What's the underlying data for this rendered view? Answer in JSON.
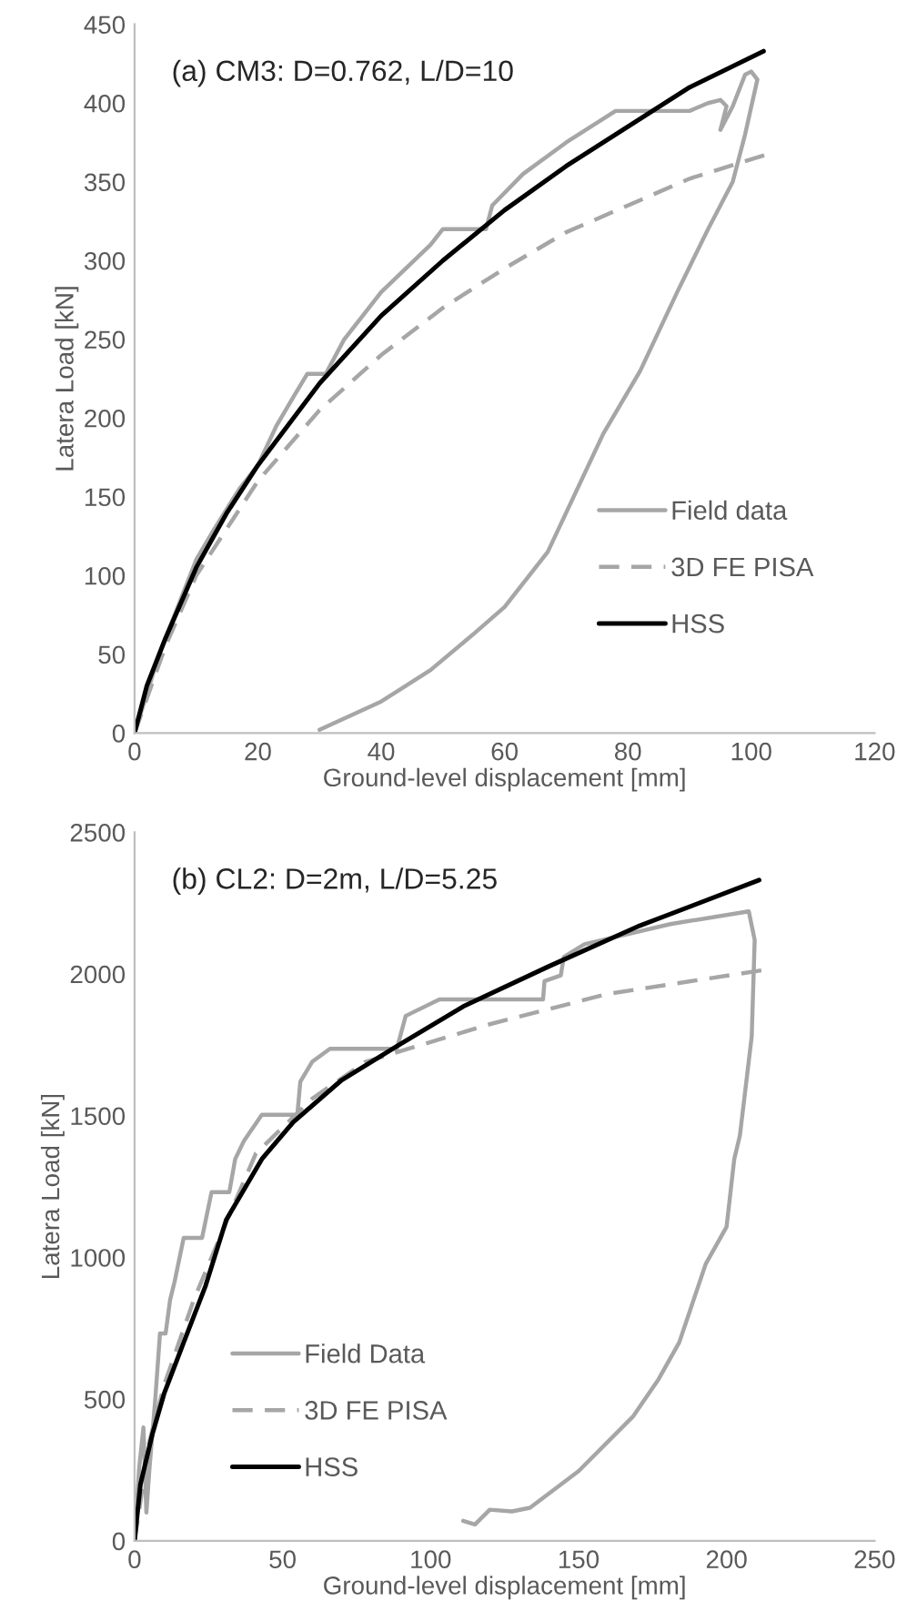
{
  "chart_data": [
    {
      "type": "line",
      "title": "(a) CM3: D=0.762, L/D=10",
      "xlabel": "Ground-level displacement [mm]",
      "ylabel": "Latera Load [kN]",
      "xlim": [
        0,
        120
      ],
      "xticks": [
        0,
        20,
        40,
        60,
        80,
        100,
        120
      ],
      "ylim": [
        0,
        450
      ],
      "yticks": [
        0,
        50,
        100,
        150,
        200,
        250,
        300,
        350,
        400,
        450
      ],
      "grid": false,
      "legend": "bottom right",
      "marker": "none",
      "series": [
        {
          "name": "Field data",
          "color": "#a6a6a6",
          "line_style": "solid",
          "x": [
            0,
            2,
            4,
            7,
            10,
            13,
            17,
            20,
            23,
            26,
            28,
            31,
            34,
            40,
            48,
            50,
            57,
            58,
            63,
            70,
            78,
            90,
            93,
            95,
            96,
            95,
            97,
            99,
            100,
            101,
            99,
            97,
            93,
            88,
            82,
            76,
            67,
            60,
            55,
            48,
            40,
            30
          ],
          "values": [
            0,
            25,
            50,
            80,
            110,
            130,
            155,
            170,
            195,
            215,
            228,
            228,
            250,
            280,
            310,
            320,
            320,
            335,
            355,
            375,
            395,
            395,
            400,
            402,
            398,
            383,
            398,
            418,
            420,
            415,
            380,
            350,
            320,
            280,
            230,
            190,
            115,
            80,
            63,
            40,
            20,
            2
          ]
        },
        {
          "name": "3D FE PISA",
          "color": "#a6a6a6",
          "line_style": "dashed",
          "x": [
            0,
            5,
            10,
            20,
            30,
            40,
            50,
            60,
            70,
            80,
            90,
            103
          ],
          "values": [
            0,
            55,
            100,
            160,
            205,
            240,
            270,
            295,
            318,
            335,
            352,
            368
          ]
        },
        {
          "name": "HSS",
          "color": "#000000",
          "line_style": "solid",
          "x": [
            0,
            2,
            5,
            10,
            15,
            20,
            30,
            40,
            50,
            60,
            70,
            80,
            90,
            102
          ],
          "values": [
            0,
            30,
            60,
            105,
            140,
            170,
            222,
            265,
            300,
            332,
            360,
            385,
            410,
            433
          ]
        }
      ]
    },
    {
      "type": "line",
      "title": "(b) CL2: D=2m, L/D=5.25",
      "xlabel": "Ground-level displacement [mm]",
      "ylabel": "Latera Load [kN]",
      "xlim": [
        0,
        250
      ],
      "xticks": [
        0,
        50,
        100,
        150,
        200,
        250
      ],
      "ylim": [
        0,
        2500
      ],
      "yticks": [
        0,
        500,
        1000,
        1500,
        2000,
        2500
      ],
      "grid": false,
      "legend": "bottom left",
      "marker": "none",
      "series": [
        {
          "name": "Field Data",
          "color": "#a6a6a6",
          "line_style": "solid",
          "x": [
            0,
            1.5,
            3,
            4,
            5,
            7,
            8.6,
            10.5,
            12,
            13.5,
            16.6,
            22.8,
            26,
            32,
            34,
            37,
            43,
            55,
            56,
            60,
            66,
            88.6,
            91.6,
            103,
            138,
            138.5,
            144,
            145,
            152,
            181,
            207.5,
            209.5,
            208.5,
            204.5,
            202.6,
            200,
            193,
            184,
            177,
            168.5,
            150,
            133.6,
            127.5,
            120,
            115,
            111
          ],
          "values": [
            0,
            250,
            400,
            100,
            250,
            500,
            732,
            732,
            850,
            913,
            1069,
            1069,
            1230,
            1230,
            1347,
            1412,
            1503,
            1503,
            1620,
            1690,
            1736,
            1736,
            1852,
            1910,
            1910,
            1975,
            1995,
            2060,
            2105,
            2176,
            2221,
            2120,
            1780,
            1430,
            1347,
            1108,
            978,
            700,
            570,
            440,
            246,
            117,
            104,
            110,
            58,
            71
          ]
        },
        {
          "name": "3D FE PISA",
          "color": "#a6a6a6",
          "line_style": "dashed",
          "x": [
            0,
            5,
            10,
            20,
            30,
            41,
            60,
            78,
            119,
            160,
            212.6
          ],
          "values": [
            0,
            350,
            550,
            850,
            1100,
            1367,
            1560,
            1690,
            1820,
            1930,
            2014
          ]
        },
        {
          "name": "HSS",
          "color": "#000000",
          "line_style": "solid",
          "x": [
            0,
            2,
            6,
            10,
            16.6,
            24,
            31,
            43,
            53.6,
            70,
            89,
            111,
            140,
            170.6,
            211
          ],
          "values": [
            0,
            200,
            376,
            520,
            700,
            900,
            1133,
            1347,
            1477,
            1626,
            1748,
            1885,
            2027,
            2170,
            2331
          ]
        }
      ]
    }
  ]
}
